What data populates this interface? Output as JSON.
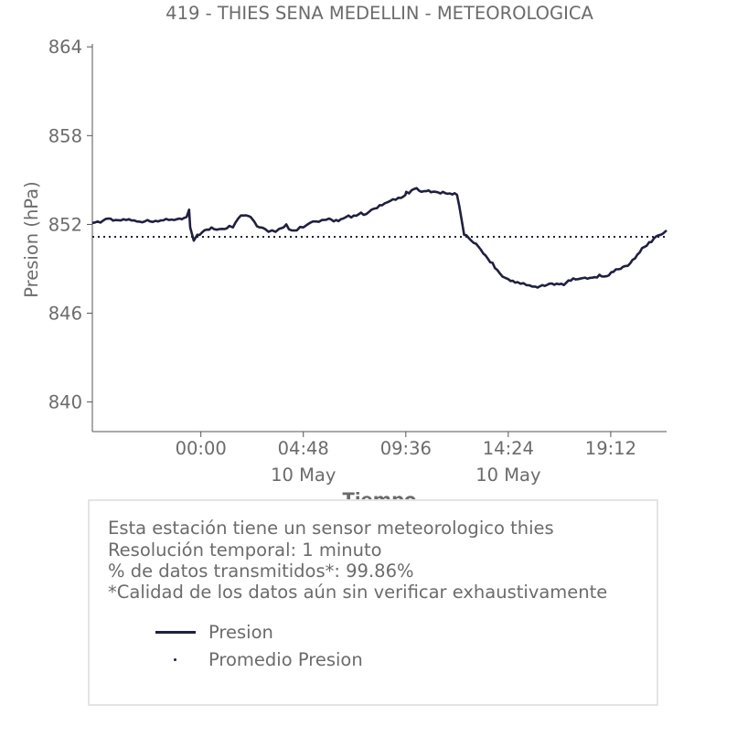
{
  "chart_data": {
    "type": "line",
    "title": "419 - THIES SENA MEDELLIN - METEOROLOGICA",
    "xlabel": "Tiempo",
    "ylabel": "Presion (hPa)",
    "ylim": [
      838,
      864.2
    ],
    "yticks": [
      840,
      846,
      852,
      858,
      864
    ],
    "xlim": [
      "05-09 18:55",
      "10 May 21:49"
    ],
    "xticks": [
      {
        "time": "05-10 00:00",
        "label": "00:00",
        "sub": ""
      },
      {
        "time": "05-10 04:48",
        "label": "04:48",
        "sub": "10 May"
      },
      {
        "time": "05-10 09:36",
        "label": "09:36",
        "sub": ""
      },
      {
        "time": "05-10 14:24",
        "label": "14:24",
        "sub": "10 May"
      },
      {
        "time": "05-10 19:12",
        "label": "19:12",
        "sub": ""
      }
    ],
    "grid": false,
    "colors": {
      "line": "#1f2040",
      "avg": "#1f2040",
      "text": "#6b6b6b",
      "axis": "#555555"
    },
    "series": [
      {
        "name": "Presion",
        "style": "solid",
        "x": [
          "05-09 18:55",
          "05-09 19:10",
          "05-09 19:40",
          "05-09 20:00",
          "05-09 20:30",
          "05-09 21:00",
          "05-09 21:30",
          "05-09 22:00",
          "05-09 22:30",
          "05-09 23:00",
          "05-09 23:20",
          "05-09 23:27",
          "05-09 23:30",
          "05-09 23:40",
          "05-09 23:50",
          "05-10 00:10",
          "05-10 00:30",
          "05-10 01:00",
          "05-10 01:20",
          "05-10 01:30",
          "05-10 01:45",
          "05-10 02:00",
          "05-10 02:20",
          "05-10 02:30",
          "05-10 02:45",
          "05-10 03:00",
          "05-10 03:10",
          "05-10 03:20",
          "05-10 03:30",
          "05-10 03:40",
          "05-10 04:00",
          "05-10 04:15",
          "05-10 04:30",
          "05-10 04:48",
          "05-10 05:15",
          "05-10 05:40",
          "05-10 06:00",
          "05-10 06:20",
          "05-10 06:40",
          "05-10 06:55",
          "05-10 07:10",
          "05-10 07:30",
          "05-10 07:45",
          "05-10 08:00",
          "05-10 08:15",
          "05-10 08:30",
          "05-10 08:45",
          "05-10 09:00",
          "05-10 09:15",
          "05-10 09:30",
          "05-10 09:35",
          "05-10 09:37",
          "05-10 09:45",
          "05-10 10:00",
          "05-10 10:20",
          "05-10 10:40",
          "05-10 11:00",
          "05-10 11:20",
          "05-10 11:40",
          "05-10 12:00",
          "05-10 12:20",
          "05-10 12:40",
          "05-10 13:00",
          "05-10 13:20",
          "05-10 13:40",
          "05-10 14:00",
          "05-10 14:24",
          "05-10 14:50",
          "05-10 15:15",
          "05-10 15:40",
          "05-10 16:00",
          "05-10 16:20",
          "05-10 16:40",
          "05-10 17:00",
          "05-10 17:20",
          "05-10 17:40",
          "05-10 18:00",
          "05-10 18:20",
          "05-10 18:40",
          "05-10 19:00",
          "05-10 19:20",
          "05-10 19:40",
          "05-10 20:00",
          "05-10 20:20",
          "05-10 20:40",
          "05-10 21:00",
          "05-10 21:20",
          "05-10 21:40",
          "05-10 21:49"
        ],
        "y": [
          852.1,
          852.2,
          852.4,
          852.3,
          852.3,
          852.2,
          852.3,
          852.2,
          852.3,
          852.4,
          852.5,
          853.0,
          851.8,
          850.9,
          851.3,
          851.6,
          851.8,
          851.7,
          851.9,
          851.8,
          852.4,
          852.6,
          852.5,
          852.2,
          851.8,
          851.7,
          851.5,
          851.6,
          851.5,
          851.7,
          852.0,
          851.6,
          851.6,
          851.8,
          852.2,
          852.3,
          852.4,
          852.3,
          852.4,
          852.6,
          852.6,
          852.8,
          852.7,
          853.0,
          853.1,
          853.3,
          853.5,
          853.7,
          853.8,
          853.9,
          854.0,
          854.2,
          854.1,
          854.4,
          854.2,
          854.3,
          854.2,
          854.2,
          854.1,
          854.0,
          851.3,
          850.9,
          850.5,
          849.9,
          849.4,
          848.7,
          848.3,
          848.1,
          847.9,
          847.8,
          847.9,
          848.0,
          848.0,
          847.9,
          848.2,
          848.3,
          848.4,
          848.4,
          848.6,
          848.5,
          848.8,
          849.0,
          849.2,
          849.7,
          850.4,
          850.8,
          851.2,
          851.4,
          851.6
        ]
      },
      {
        "name": "Promedio Presion",
        "style": "dotted",
        "y_const": 851.16
      }
    ]
  },
  "info": {
    "lines": [
      "Esta estación tiene un sensor meteorologico thies",
      "Resolución temporal: 1 minuto",
      "% de datos transmitidos*: 99.86%",
      "*Calidad de los datos aún sin verificar exhaustivamente"
    ],
    "legend": [
      {
        "label": "Presion",
        "marker": "line"
      },
      {
        "label": "Promedio Presion",
        "marker": "dot"
      }
    ]
  }
}
